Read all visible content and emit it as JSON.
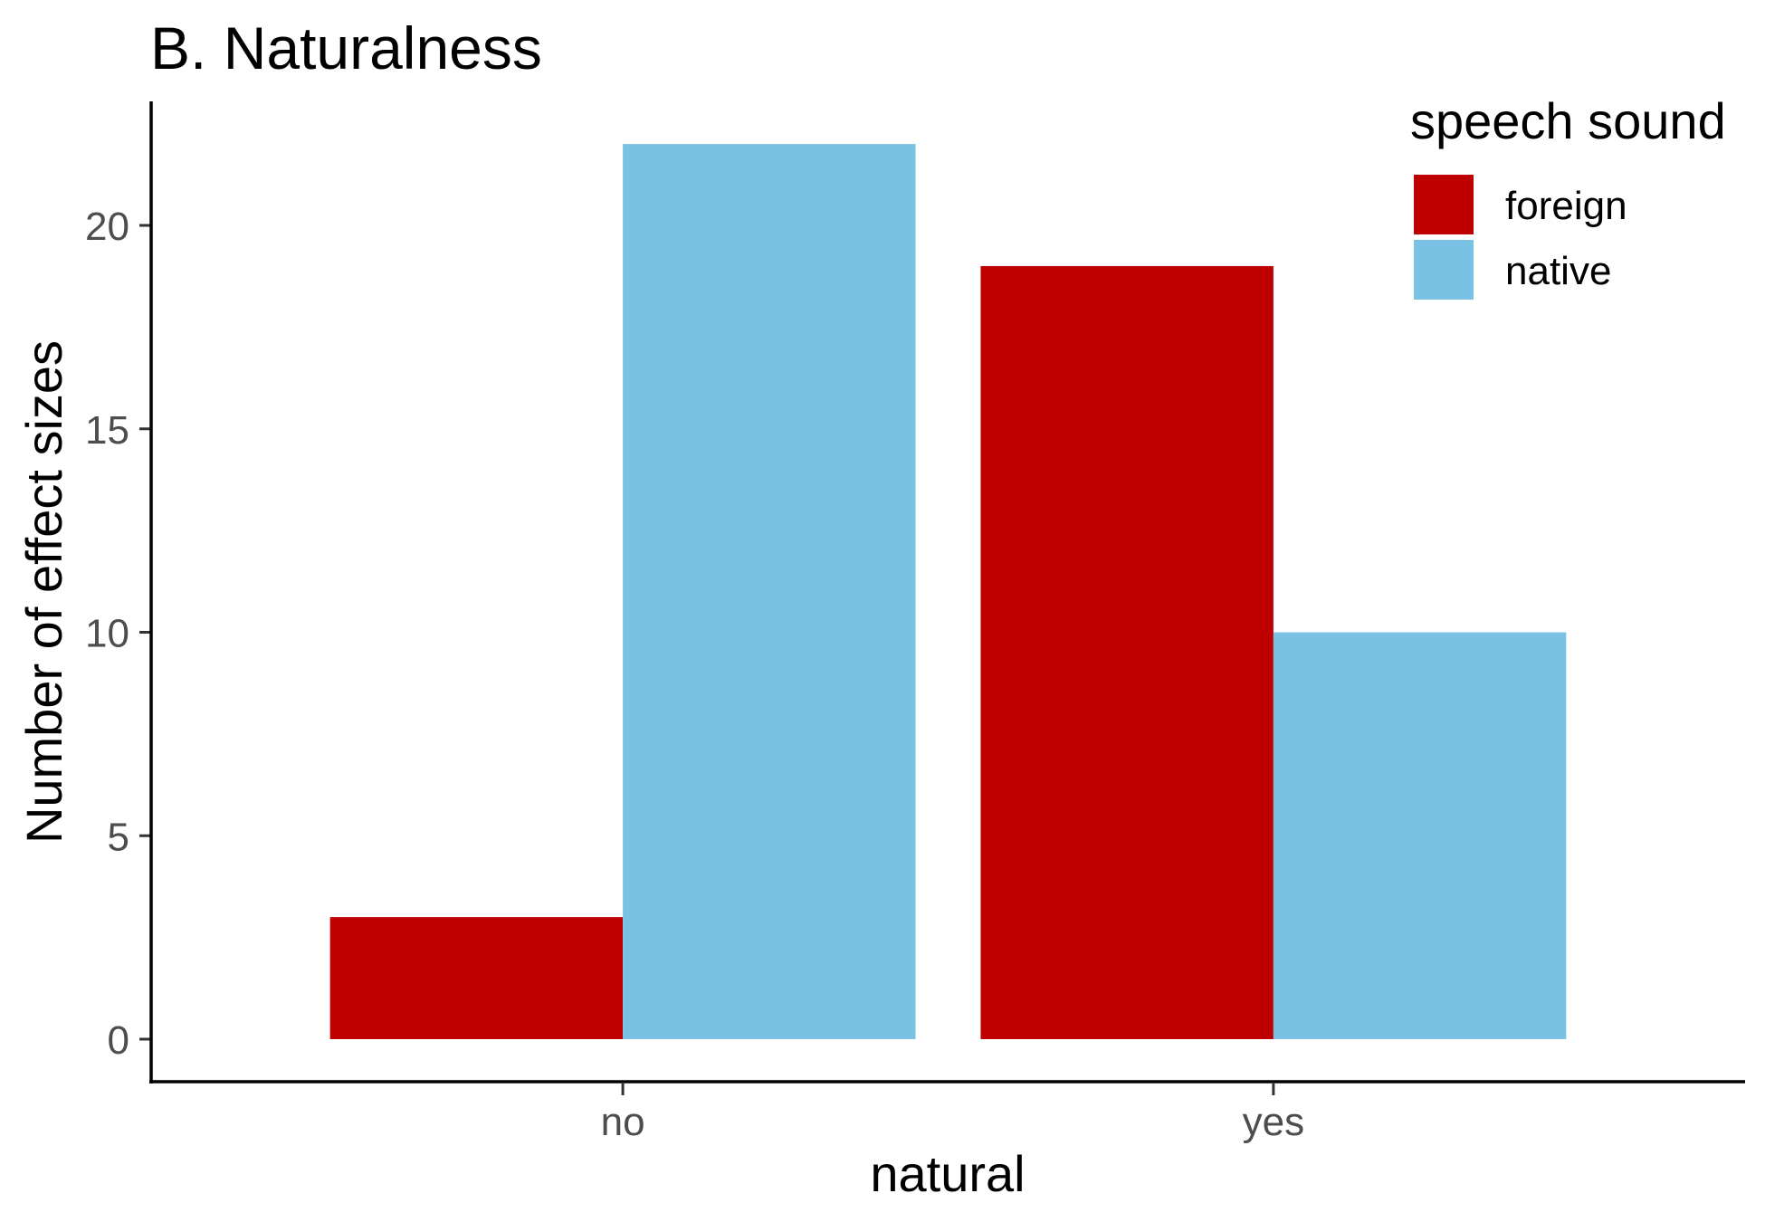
{
  "chart_data": {
    "type": "bar",
    "title": "B. Naturalness",
    "xlabel": "natural",
    "ylabel": "Number of effect sizes",
    "categories": [
      "no",
      "yes"
    ],
    "series": [
      {
        "name": "foreign",
        "values": [
          3,
          19
        ],
        "color": "#BF0000"
      },
      {
        "name": "native",
        "values": [
          22,
          10
        ],
        "color": "#7AC2E4"
      }
    ],
    "ylim": [
      0,
      22
    ],
    "yticks": [
      0,
      5,
      10,
      15,
      20
    ],
    "grid": false,
    "legend": {
      "title": "speech sound",
      "position": "top-right"
    }
  }
}
